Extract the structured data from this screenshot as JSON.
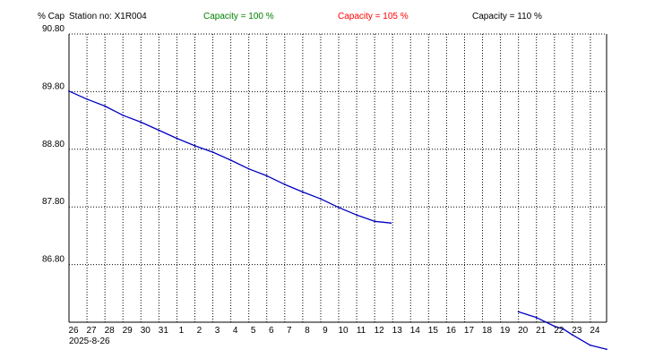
{
  "header": {
    "y_unit": "% Cap",
    "station": "Station no: X1R004",
    "capacity_100": "Capacity = 100 %",
    "capacity_105": "Capacity = 105 %",
    "capacity_110": "Capacity = 110 %"
  },
  "colors": {
    "capacity_100": "#008000",
    "capacity_105": "#ff0000",
    "capacity_110": "#000000",
    "series": "#0000c0"
  },
  "chart_data": {
    "type": "line",
    "xlabel": "",
    "ylabel": "% Cap",
    "ylim": [
      85.8,
      90.8
    ],
    "yticks": [
      "90.80",
      "89.80",
      "88.80",
      "87.80",
      "86.80"
    ],
    "x_tick_labels": [
      "26",
      "27",
      "28",
      "29",
      "30",
      "31",
      "1",
      "2",
      "3",
      "4",
      "5",
      "6",
      "7",
      "8",
      "9",
      "10",
      "11",
      "12",
      "13",
      "14",
      "15",
      "16",
      "17",
      "18",
      "19",
      "20",
      "21",
      "22",
      "23",
      "24"
    ],
    "x_start_date": "2025-8-26",
    "x_range_days": [
      0,
      29.9
    ],
    "grid": true,
    "series": [
      {
        "segments": [
          [
            [
              0,
              89.81
            ],
            [
              1,
              89.67
            ],
            [
              2,
              89.55
            ],
            [
              3,
              89.39
            ],
            [
              4,
              89.27
            ],
            [
              5,
              89.13
            ],
            [
              6,
              88.99
            ],
            [
              7,
              88.86
            ],
            [
              8,
              88.75
            ],
            [
              9,
              88.61
            ],
            [
              10,
              88.46
            ],
            [
              11,
              88.34
            ],
            [
              12,
              88.19
            ],
            [
              13,
              88.06
            ],
            [
              14,
              87.94
            ],
            [
              15,
              87.79
            ],
            [
              16,
              87.66
            ],
            [
              17,
              87.55
            ],
            [
              17.9,
              87.52
            ]
          ],
          [
            [
              25,
              85.98
            ],
            [
              26,
              85.88
            ],
            [
              27,
              85.73
            ],
            [
              27.5,
              85.68
            ],
            [
              28,
              85.58
            ],
            [
              29,
              85.4
            ],
            [
              29.9,
              85.33
            ]
          ]
        ]
      }
    ]
  }
}
